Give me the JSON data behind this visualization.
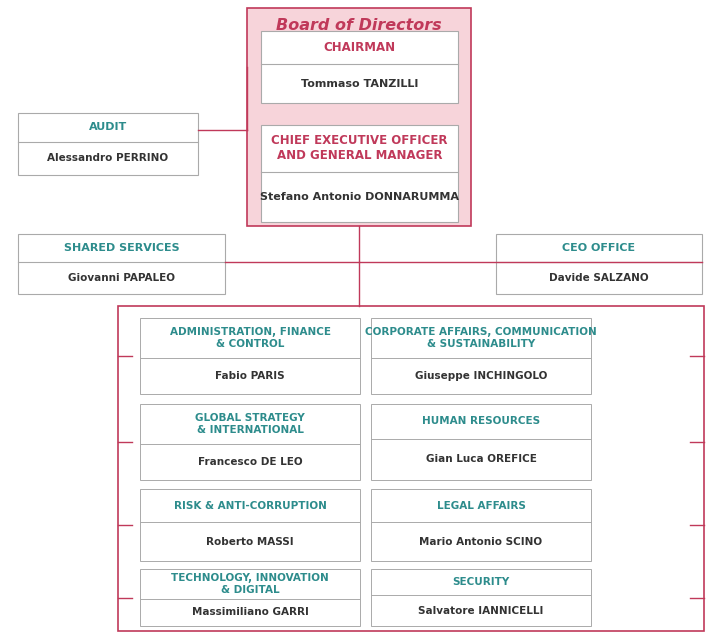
{
  "title": "Board of Directors",
  "title_color": "#c0395a",
  "bg_board": "#f7d4da",
  "teal": "#2d8c8c",
  "red": "#c0395a",
  "black": "#333333",
  "gray_border": "#aaaaaa",
  "red_border": "#c0395a",
  "boxes": {
    "chairman_title": "CHAIRMAN",
    "chairman_name": "Tommaso TANZILLI",
    "ceo_title": "CHIEF EXECUTIVE OFFICER\nAND GENERAL MANAGER",
    "ceo_name": "Stefano Antonio DONNARUMMA",
    "audit_title": "AUDIT",
    "audit_name": "Alessandro PERRINO",
    "shared_title": "SHARED SERVICES",
    "shared_name": "Giovanni PAPALEO",
    "ceo_office_title": "CEO OFFICE",
    "ceo_office_name": "Davide SALZANO",
    "dept1_title": "ADMINISTRATION, FINANCE\n& CONTROL",
    "dept1_name": "Fabio PARIS",
    "dept2_title": "CORPORATE AFFAIRS, COMMUNICATION\n& SUSTAINABILITY",
    "dept2_name": "Giuseppe INCHINGOLO",
    "dept3_title": "GLOBAL STRATEGY\n& INTERNATIONAL",
    "dept3_name": "Francesco DE LEO",
    "dept4_title": "HUMAN RESOURCES",
    "dept4_name": "Gian Luca OREFICE",
    "dept5_title": "RISK & ANTI-CORRUPTION",
    "dept5_name": "Roberto MASSI",
    "dept6_title": "LEGAL AFFAIRS",
    "dept6_name": "Mario Antonio SCINO",
    "dept7_title": "TECHNOLOGY, INNOVATION\n& DIGITAL",
    "dept7_name": "Massimiliano GARRI",
    "dept8_title": "SECURITY",
    "dept8_name": "Salvatore IANNICELLI"
  }
}
